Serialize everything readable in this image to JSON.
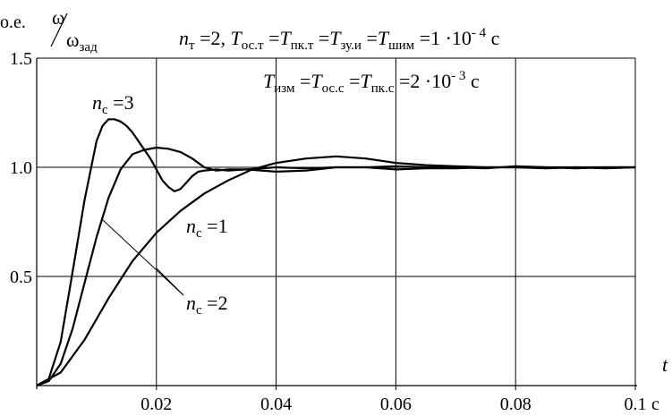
{
  "chart_data": {
    "type": "line",
    "ylabel_unit": "o.e.",
    "ylabel_symbol": "ω",
    "ylabel_ref": "ω",
    "ylabel_ref_sub": "зад",
    "xlabel_symbol": "t",
    "xlabel_unit": "c",
    "xlim": [
      0,
      0.1
    ],
    "ylim": [
      0,
      1.5
    ],
    "x_ticks": [
      "0.02",
      "0.04",
      "0.06",
      "0.08",
      "0.1"
    ],
    "y_ticks": [
      "0.5",
      "1.0",
      "1.5"
    ],
    "grid": true,
    "params_line1": {
      "parts": [
        {
          "t": "n",
          "i": true
        },
        {
          "t": "т",
          "sub": true
        },
        {
          "t": " =2, "
        },
        {
          "t": "T",
          "i": true
        },
        {
          "t": "ос.т",
          "sub": true
        },
        {
          "t": " ="
        },
        {
          "t": "T",
          "i": true
        },
        {
          "t": "пк.т",
          "sub": true
        },
        {
          "t": " ="
        },
        {
          "t": "T",
          "i": true
        },
        {
          "t": "зу.и",
          "sub": true
        },
        {
          "t": " ="
        },
        {
          "t": "T",
          "i": true
        },
        {
          "t": "шим",
          "sub": true
        },
        {
          "t": " =1 ·10"
        },
        {
          "t": "- 4",
          "sup": true
        },
        {
          "t": " c"
        }
      ]
    },
    "params_line2": {
      "parts": [
        {
          "t": "T",
          "i": true
        },
        {
          "t": "изм",
          "sub": true
        },
        {
          "t": " ="
        },
        {
          "t": "T",
          "i": true
        },
        {
          "t": "ос.с",
          "sub": true
        },
        {
          "t": " ="
        },
        {
          "t": "T",
          "i": true
        },
        {
          "t": "пк.с",
          "sub": true
        },
        {
          "t": " =2 ·10"
        },
        {
          "t": "- 3",
          "sup": true
        },
        {
          "t": " c"
        }
      ]
    },
    "series": [
      {
        "name": "n_c =3",
        "label_n": "n",
        "label_sub": "c",
        "label_val": " =3",
        "x": [
          0,
          0.002,
          0.004,
          0.006,
          0.008,
          0.01,
          0.011,
          0.012,
          0.013,
          0.014,
          0.015,
          0.016,
          0.017,
          0.018,
          0.019,
          0.02,
          0.021,
          0.022,
          0.023,
          0.024,
          0.025,
          0.026,
          0.027,
          0.028,
          0.03,
          0.032,
          0.035,
          0.04,
          0.045,
          0.05,
          0.055,
          0.06,
          0.065,
          0.07,
          0.075,
          0.08,
          0.085,
          0.09,
          0.095,
          0.1
        ],
        "y": [
          0,
          0.03,
          0.2,
          0.52,
          0.85,
          1.12,
          1.19,
          1.22,
          1.22,
          1.21,
          1.19,
          1.16,
          1.12,
          1.08,
          1.04,
          0.99,
          0.94,
          0.91,
          0.89,
          0.9,
          0.93,
          0.96,
          0.98,
          0.985,
          0.99,
          0.985,
          0.99,
          1.0,
          0.995,
          1.0,
          1.0,
          1.005,
          1.0,
          1.0,
          0.995,
          1.005,
          1.0,
          0.995,
          1.0,
          1.0
        ]
      },
      {
        "name": "n_c =2",
        "label_n": "n",
        "label_sub": "c",
        "label_val": " =2",
        "x": [
          0,
          0.002,
          0.004,
          0.006,
          0.008,
          0.01,
          0.012,
          0.014,
          0.016,
          0.018,
          0.02,
          0.022,
          0.024,
          0.026,
          0.028,
          0.03,
          0.032,
          0.035,
          0.04,
          0.045,
          0.05,
          0.055,
          0.06,
          0.065,
          0.07,
          0.075,
          0.08,
          0.085,
          0.09,
          0.095,
          0.1
        ],
        "y": [
          0,
          0.02,
          0.1,
          0.26,
          0.47,
          0.68,
          0.86,
          0.99,
          1.06,
          1.08,
          1.09,
          1.085,
          1.07,
          1.04,
          1.0,
          0.985,
          0.99,
          0.99,
          0.98,
          0.985,
          1.0,
          1.0,
          0.99,
          0.995,
          0.995,
          1.0,
          1.0,
          0.995,
          1.0,
          0.995,
          1.0
        ]
      },
      {
        "name": "n_c =1",
        "label_n": "n",
        "label_sub": "c",
        "label_val": " =1",
        "x": [
          0,
          0.004,
          0.008,
          0.012,
          0.016,
          0.02,
          0.024,
          0.028,
          0.032,
          0.036,
          0.04,
          0.045,
          0.05,
          0.055,
          0.06,
          0.065,
          0.07,
          0.075,
          0.08,
          0.085,
          0.09,
          0.095,
          0.1
        ],
        "y": [
          0,
          0.06,
          0.21,
          0.4,
          0.57,
          0.7,
          0.8,
          0.88,
          0.94,
          0.99,
          1.02,
          1.04,
          1.05,
          1.04,
          1.02,
          1.01,
          1.005,
          1.0,
          1.0,
          1.0,
          1.0,
          1.0,
          1.0
        ]
      }
    ]
  }
}
